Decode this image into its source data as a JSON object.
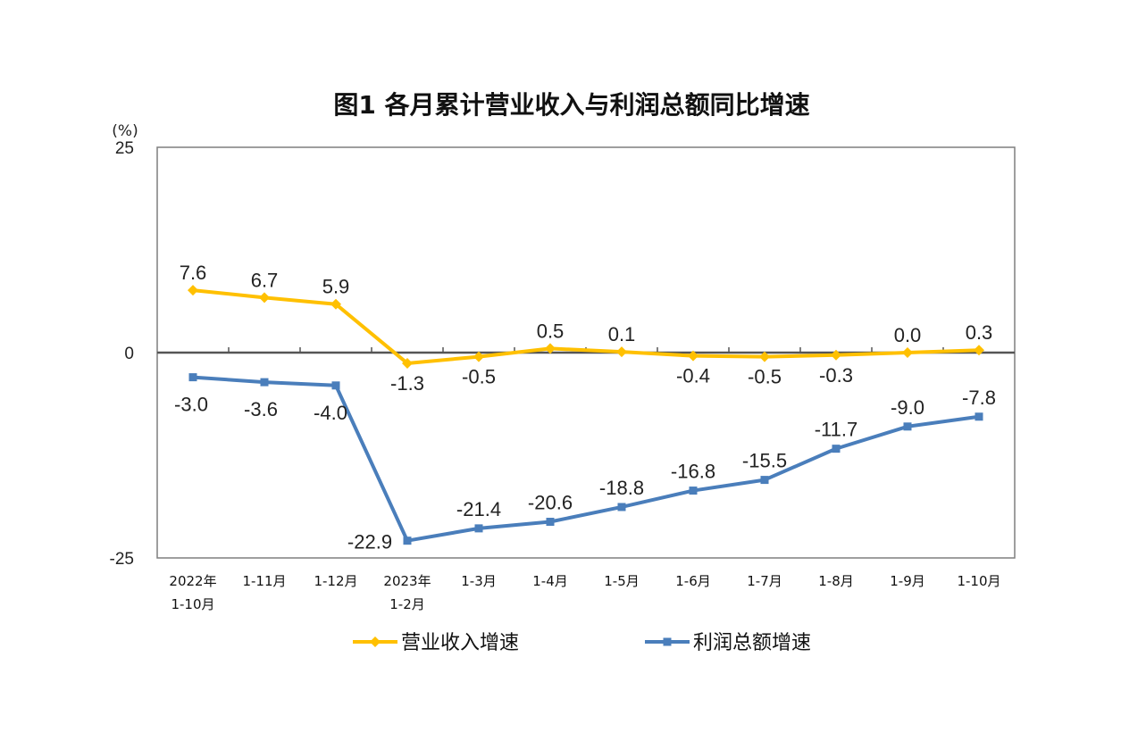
{
  "chart_data": {
    "type": "line",
    "title": "图1  各月累计营业收入与利润总额同比增速",
    "y_unit": "(%)",
    "ylim": [
      -25,
      25
    ],
    "y_ticks": [
      "25",
      "0",
      "-25"
    ],
    "grid": false,
    "legend_position": "bottom",
    "categories": [
      [
        "2022年",
        "1-10月"
      ],
      [
        "1-11月"
      ],
      [
        "1-12月"
      ],
      [
        "2023年",
        "1-2月"
      ],
      [
        "1-3月"
      ],
      [
        "1-4月"
      ],
      [
        "1-5月"
      ],
      [
        "1-6月"
      ],
      [
        "1-7月"
      ],
      [
        "1-8月"
      ],
      [
        "1-9月"
      ],
      [
        "1-10月"
      ]
    ],
    "series": [
      {
        "name": "营业收入增速",
        "color": "#FFC000",
        "marker": "diamond",
        "values": [
          7.6,
          6.7,
          5.9,
          -1.3,
          -0.5,
          0.5,
          0.1,
          -0.4,
          -0.5,
          -0.3,
          0.0,
          0.3
        ],
        "labels": [
          "7.6",
          "6.7",
          "5.9",
          "-1.3",
          "-0.5",
          "0.5",
          "0.1",
          "-0.4",
          "-0.5",
          "-0.3",
          "0.0",
          "0.3"
        ]
      },
      {
        "name": "利润总额增速",
        "color": "#4A7EBB",
        "marker": "square",
        "values": [
          -3.0,
          -3.6,
          -4.0,
          -22.9,
          -21.4,
          -20.6,
          -18.8,
          -16.8,
          -15.5,
          -11.7,
          -9.0,
          -7.8
        ],
        "labels": [
          "-3.0",
          "-3.6",
          "-4.0",
          "-22.9",
          "-21.4",
          "-20.6",
          "-18.8",
          "-16.8",
          "-15.5",
          "-11.7",
          "-9.0",
          "-7.8"
        ]
      }
    ]
  }
}
